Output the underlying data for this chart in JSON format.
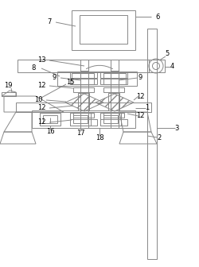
{
  "bg_color": "#ffffff",
  "line_color": "#888888",
  "label_color": "#000000",
  "fig_width": 2.5,
  "fig_height": 3.36,
  "dpi": 100
}
